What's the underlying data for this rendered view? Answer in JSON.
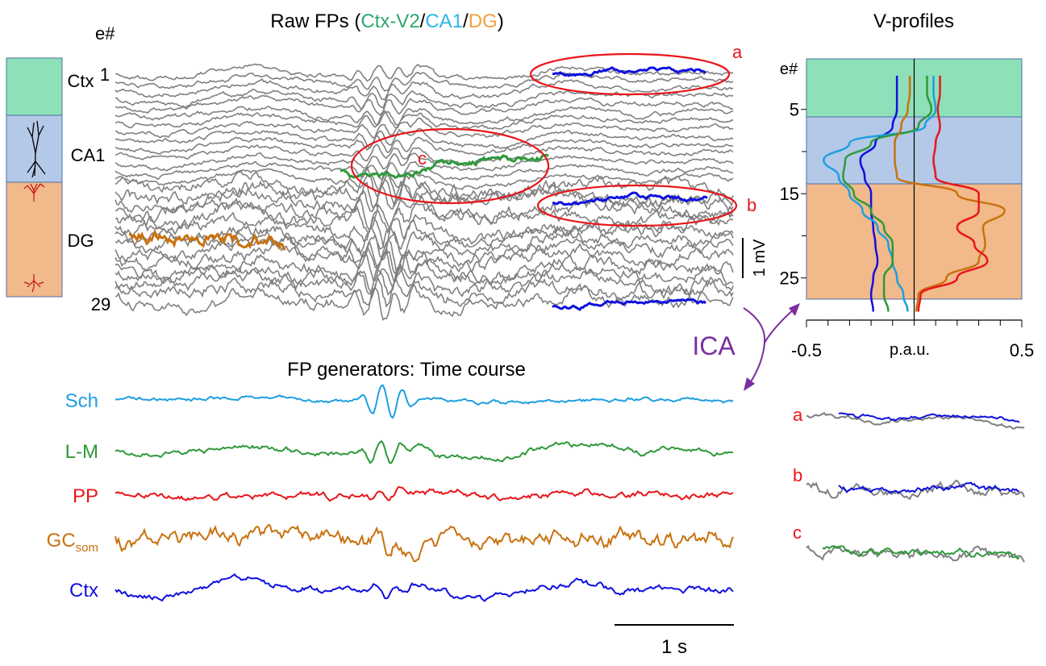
{
  "raw_fps": {
    "title": {
      "prefix": "Raw FPs (",
      "ctx": "Ctx-V2",
      "sep1": "/",
      "ca1": "CA1",
      "sep2": "/",
      "dg": "DG",
      "suffix": ")"
    },
    "electrode_header": "e#",
    "first_electrode": "1",
    "last_electrode": "29",
    "regions": [
      "Ctx",
      "CA1",
      "DG"
    ],
    "events": [
      "a",
      "c",
      "b"
    ],
    "scale": "1 mV"
  },
  "ica": "ICA",
  "generators": {
    "title": "FP generators: Time course",
    "traces": [
      {
        "name": "Sch",
        "color": "#1e9fe0"
      },
      {
        "name": "L-M",
        "color": "#2e9a3a"
      },
      {
        "name": "PP",
        "color": "#e8161b"
      },
      {
        "name": "GC",
        "subscript": "som",
        "color": "#c8720f"
      },
      {
        "name": "Ctx",
        "color": "#1010e0"
      }
    ],
    "scale": "1 s"
  },
  "insets": [
    "a",
    "b",
    "c"
  ],
  "chart_data": {
    "type": "line",
    "title": "V-profiles",
    "ylabel": "e#",
    "xlabel": "p.a.u.",
    "xlim": [
      -0.5,
      0.5
    ],
    "xticks": [
      -0.5,
      0.5
    ],
    "xminor_ticks": [
      -0.4,
      -0.3,
      -0.2,
      -0.1,
      0,
      0.1,
      0.2,
      0.3,
      0.4
    ],
    "ylim": [
      -1,
      30
    ],
    "yticks": [
      5,
      15,
      25
    ],
    "yminor_ticks": [
      10,
      20
    ],
    "electrodes": [
      1,
      3,
      5,
      7,
      9,
      11,
      13,
      15,
      17,
      19,
      21,
      23,
      25,
      27,
      29
    ],
    "series": [
      {
        "name": "Ctx",
        "color": "#1010e0",
        "values": [
          -0.08,
          -0.08,
          -0.08,
          -0.1,
          -0.18,
          -0.25,
          -0.23,
          -0.2,
          -0.2,
          -0.19,
          -0.18,
          -0.17,
          -0.19,
          -0.2,
          -0.19
        ]
      },
      {
        "name": "Sch",
        "color": "#1e9fe0",
        "values": [
          0.09,
          0.09,
          0.1,
          0.05,
          -0.3,
          -0.42,
          -0.35,
          -0.3,
          -0.24,
          -0.17,
          -0.12,
          -0.1,
          -0.08,
          -0.05,
          -0.03
        ]
      },
      {
        "name": "L-M",
        "color": "#2e9a3a",
        "values": [
          0.06,
          0.06,
          0.08,
          0.02,
          -0.2,
          -0.32,
          -0.33,
          -0.28,
          -0.2,
          -0.14,
          -0.1,
          -0.1,
          -0.14,
          -0.14,
          -0.12
        ]
      },
      {
        "name": "GC",
        "color": "#c8720f",
        "values": [
          -0.02,
          -0.02,
          -0.03,
          -0.06,
          -0.09,
          -0.09,
          -0.08,
          0.2,
          0.42,
          0.32,
          0.33,
          0.3,
          0.15,
          0.02,
          0.01
        ]
      },
      {
        "name": "PP",
        "color": "#e8161b",
        "values": [
          0.12,
          0.12,
          0.11,
          0.12,
          0.1,
          0.09,
          0.1,
          0.3,
          0.3,
          0.2,
          0.28,
          0.34,
          0.2,
          0.03,
          0.02
        ]
      }
    ]
  }
}
